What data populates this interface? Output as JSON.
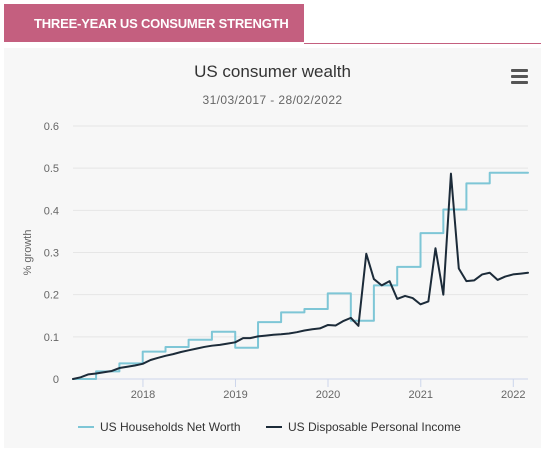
{
  "header": {
    "tab_label": "THREE-YEAR US CONSUMER STRENGTH"
  },
  "menu_icon": "hamburger-menu-icon",
  "colors": {
    "accent": "#c45f7f",
    "net_worth": "#7ec6d6",
    "income": "#1c2b39"
  },
  "chart_data": {
    "type": "line",
    "title": "US consumer wealth",
    "subtitle": "31/03/2017 - 28/02/2022",
    "xlabel": "",
    "ylabel": "% growth",
    "ylim": [
      0,
      0.6
    ],
    "yticks": [
      0,
      0.1,
      0.2,
      0.3,
      0.4,
      0.5,
      0.6
    ],
    "ytick_labels": [
      "0",
      "0.1",
      "0.2",
      "0.3",
      "0.4",
      "0.5",
      "0.6"
    ],
    "xlim": [
      "2017-03-31",
      "2022-02-28"
    ],
    "xticks": [
      "2018-01-01",
      "2019-01-01",
      "2020-01-01",
      "2021-01-01",
      "2022-01-01"
    ],
    "xtick_labels": [
      "2018",
      "2019",
      "2020",
      "2021",
      "2022"
    ],
    "grid": true,
    "legend": "bottom",
    "series": [
      {
        "name": "US Households Net Worth",
        "color": "#7ec6d6",
        "points": [
          [
            "2017-03-31",
            0.0
          ],
          [
            "2017-06-30",
            0.0
          ],
          [
            "2017-06-30",
            0.018
          ],
          [
            "2017-09-30",
            0.018
          ],
          [
            "2017-09-30",
            0.037
          ],
          [
            "2017-12-31",
            0.037
          ],
          [
            "2017-12-31",
            0.065
          ],
          [
            "2018-03-31",
            0.065
          ],
          [
            "2018-03-31",
            0.076
          ],
          [
            "2018-06-30",
            0.076
          ],
          [
            "2018-06-30",
            0.093
          ],
          [
            "2018-09-30",
            0.093
          ],
          [
            "2018-09-30",
            0.112
          ],
          [
            "2018-12-31",
            0.112
          ],
          [
            "2018-12-31",
            0.074
          ],
          [
            "2019-03-31",
            0.074
          ],
          [
            "2019-03-31",
            0.135
          ],
          [
            "2019-06-30",
            0.135
          ],
          [
            "2019-06-30",
            0.158
          ],
          [
            "2019-09-30",
            0.158
          ],
          [
            "2019-09-30",
            0.166
          ],
          [
            "2019-12-31",
            0.166
          ],
          [
            "2019-12-31",
            0.203
          ],
          [
            "2020-03-31",
            0.203
          ],
          [
            "2020-03-31",
            0.138
          ],
          [
            "2020-06-30",
            0.138
          ],
          [
            "2020-06-30",
            0.222
          ],
          [
            "2020-09-30",
            0.222
          ],
          [
            "2020-09-30",
            0.266
          ],
          [
            "2020-12-31",
            0.266
          ],
          [
            "2020-12-31",
            0.346
          ],
          [
            "2021-03-31",
            0.346
          ],
          [
            "2021-03-31",
            0.402
          ],
          [
            "2021-06-30",
            0.402
          ],
          [
            "2021-06-30",
            0.464
          ],
          [
            "2021-09-30",
            0.464
          ],
          [
            "2021-09-30",
            0.489
          ],
          [
            "2022-02-28",
            0.489
          ]
        ]
      },
      {
        "name": "US Disposable Personal Income",
        "color": "#1c2b39",
        "points": [
          [
            "2017-03-31",
            0.0
          ],
          [
            "2017-04-30",
            0.004
          ],
          [
            "2017-05-31",
            0.011
          ],
          [
            "2017-06-30",
            0.013
          ],
          [
            "2017-07-31",
            0.016
          ],
          [
            "2017-08-31",
            0.019
          ],
          [
            "2017-09-30",
            0.026
          ],
          [
            "2017-10-31",
            0.029
          ],
          [
            "2017-11-30",
            0.032
          ],
          [
            "2017-12-31",
            0.036
          ],
          [
            "2018-01-31",
            0.045
          ],
          [
            "2018-02-28",
            0.05
          ],
          [
            "2018-03-31",
            0.055
          ],
          [
            "2018-04-30",
            0.059
          ],
          [
            "2018-05-31",
            0.064
          ],
          [
            "2018-06-30",
            0.068
          ],
          [
            "2018-07-31",
            0.072
          ],
          [
            "2018-08-31",
            0.076
          ],
          [
            "2018-09-30",
            0.079
          ],
          [
            "2018-10-31",
            0.081
          ],
          [
            "2018-11-30",
            0.084
          ],
          [
            "2018-12-31",
            0.087
          ],
          [
            "2019-01-31",
            0.097
          ],
          [
            "2019-02-28",
            0.097
          ],
          [
            "2019-03-31",
            0.101
          ],
          [
            "2019-04-30",
            0.103
          ],
          [
            "2019-05-31",
            0.105
          ],
          [
            "2019-06-30",
            0.106
          ],
          [
            "2019-07-31",
            0.108
          ],
          [
            "2019-08-31",
            0.111
          ],
          [
            "2019-09-30",
            0.115
          ],
          [
            "2019-10-31",
            0.118
          ],
          [
            "2019-11-30",
            0.12
          ],
          [
            "2019-12-31",
            0.128
          ],
          [
            "2020-01-31",
            0.127
          ],
          [
            "2020-02-29",
            0.137
          ],
          [
            "2020-03-31",
            0.145
          ],
          [
            "2020-04-30",
            0.126
          ],
          [
            "2020-05-31",
            0.297
          ],
          [
            "2020-06-30",
            0.237
          ],
          [
            "2020-07-31",
            0.222
          ],
          [
            "2020-08-31",
            0.232
          ],
          [
            "2020-09-30",
            0.19
          ],
          [
            "2020-10-31",
            0.197
          ],
          [
            "2020-11-30",
            0.192
          ],
          [
            "2020-12-31",
            0.177
          ],
          [
            "2021-01-31",
            0.184
          ],
          [
            "2021-02-28",
            0.31
          ],
          [
            "2021-03-31",
            0.2
          ],
          [
            "2021-04-30",
            0.487
          ],
          [
            "2021-05-31",
            0.262
          ],
          [
            "2021-06-30",
            0.232
          ],
          [
            "2021-07-31",
            0.234
          ],
          [
            "2021-08-31",
            0.248
          ],
          [
            "2021-09-30",
            0.252
          ],
          [
            "2021-10-31",
            0.235
          ],
          [
            "2021-11-30",
            0.243
          ],
          [
            "2021-12-31",
            0.248
          ],
          [
            "2022-01-31",
            0.25
          ],
          [
            "2022-02-28",
            0.252
          ]
        ]
      }
    ]
  }
}
